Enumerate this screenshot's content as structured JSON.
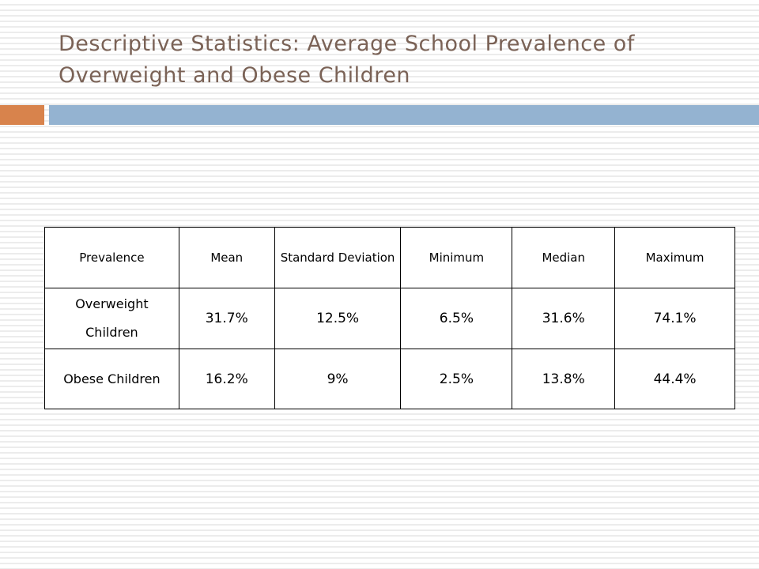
{
  "slide": {
    "title": "Descriptive Statistics:  Average School Prevalence of Overweight and Obese Children",
    "accent_colors": {
      "orange": "#d8834c",
      "blue": "#94b3d1",
      "title_text": "#7a6256"
    }
  },
  "table": {
    "headers": [
      "Prevalence",
      "Mean",
      "Standard Deviation",
      "Minimum",
      "Median",
      "Maximum"
    ],
    "rows": [
      [
        "Overweight Children",
        "31.7%",
        "12.5%",
        "6.5%",
        "31.6%",
        "74.1%"
      ],
      [
        "Obese Children",
        "16.2%",
        "9%",
        "2.5%",
        "13.8%",
        "44.4%"
      ]
    ]
  }
}
